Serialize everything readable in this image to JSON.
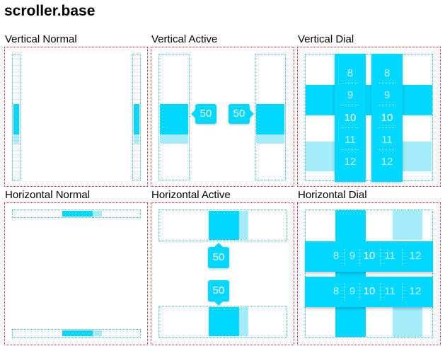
{
  "page": {
    "title": "scroller.base"
  },
  "colors": {
    "accent": "#00d8ff",
    "accent_light": "#a4ecfa",
    "panel_border": "#cc2222",
    "track_border": "#2ab4d8"
  },
  "sections": {
    "vertical_normal": {
      "label": "Vertical Normal"
    },
    "vertical_active": {
      "label": "Vertical Active",
      "tooltips": [
        "50",
        "50"
      ]
    },
    "vertical_dial": {
      "label": "Vertical Dial",
      "items": [
        "8",
        "9",
        "10",
        "11",
        "12"
      ],
      "selected": "10"
    },
    "horizontal_normal": {
      "label": "Horizontal Normal"
    },
    "horizontal_active": {
      "label": "Horizontal Active",
      "tooltips": [
        "50",
        "50"
      ]
    },
    "horizontal_dial": {
      "label": "Horizontal Dial",
      "items": [
        "8",
        "9",
        "10",
        "11",
        "12"
      ],
      "selected": "10"
    }
  }
}
